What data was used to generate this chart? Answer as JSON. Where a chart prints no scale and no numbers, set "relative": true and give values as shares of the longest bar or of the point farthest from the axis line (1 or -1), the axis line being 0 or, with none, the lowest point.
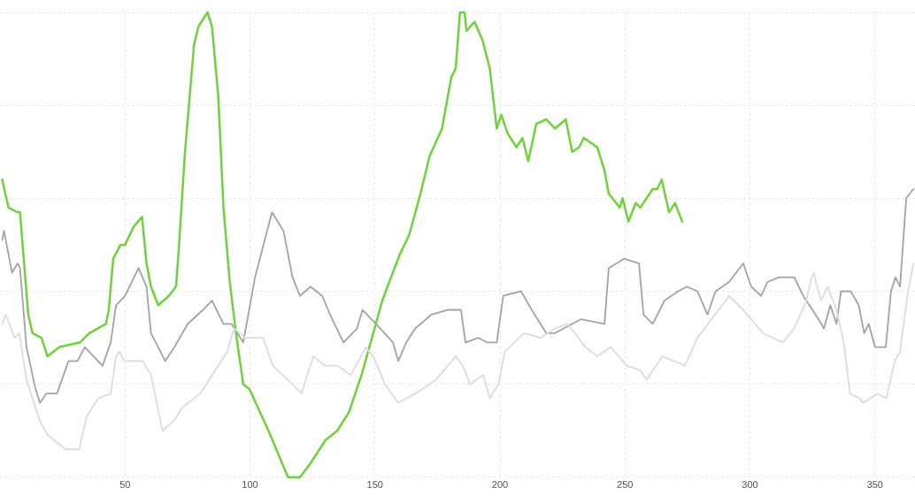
{
  "chart_data": {
    "type": "line",
    "relative": true,
    "xlim": [
      0,
      366
    ],
    "xticks": [
      50,
      100,
      150,
      200,
      250,
      300,
      350
    ],
    "grid": true,
    "legend": false,
    "marker": "none",
    "line_style": "solid",
    "series": [
      {
        "color": "#dcdcdc",
        "x": [
          0.9,
          2.3,
          5.9,
          7.7,
          10.6,
          16,
          19.2,
          26.3,
          31.7,
          34.6,
          39.3,
          44.3,
          46.4,
          47.8,
          49.6,
          51.4,
          57.1,
          60.4,
          65,
          69.3,
          72.9,
          80.1,
          87.3,
          90.9,
          93.7,
          98,
          105.2,
          109.1,
          117,
          120.6,
          125.3,
          130.2,
          134.9,
          140.3,
          146.4,
          149.3,
          154,
          159.3,
          166.1,
          174.4,
          182.3,
          185.1,
          188,
          193.4,
          195.9,
          199.4,
          201.9,
          209.5,
          216.3,
          222,
          227,
          234.2,
          238.9,
          244.3,
          250.7,
          256.1,
          258.6,
          265,
          274,
          279,
          291.6,
          297.3,
          305.2,
          313.1,
          317.7,
          322.6,
          324.6,
          325.6,
          326.3,
          328.5,
          331,
          334.6,
          337.5,
          340,
          343.9,
          345.2,
          351,
          354.6,
          357.9,
          360,
          363.2,
          365.4
        ],
        "values": [
          0.33,
          0.35,
          0.3,
          0.31,
          0.21,
          0.12,
          0.09,
          0.06,
          0.06,
          0.13,
          0.17,
          0.18,
          0.26,
          0.27,
          0.25,
          0.25,
          0.25,
          0.22,
          0.1,
          0.12,
          0.15,
          0.18,
          0.24,
          0.27,
          0.32,
          0.3,
          0.3,
          0.24,
          0.2,
          0.18,
          0.26,
          0.24,
          0.24,
          0.22,
          0.28,
          0.26,
          0.2,
          0.16,
          0.18,
          0.21,
          0.26,
          0.24,
          0.2,
          0.22,
          0.17,
          0.2,
          0.27,
          0.31,
          0.3,
          0.32,
          0.33,
          0.28,
          0.26,
          0.28,
          0.24,
          0.23,
          0.21,
          0.26,
          0.24,
          0.3,
          0.39,
          0.36,
          0.31,
          0.29,
          0.32,
          0.38,
          0.43,
          0.44,
          0.42,
          0.38,
          0.41,
          0.36,
          0.29,
          0.18,
          0.17,
          0.16,
          0.18,
          0.17,
          0.25,
          0.27,
          0.4,
          0.46
        ]
      },
      {
        "color": "#a3a3a3",
        "x": [
          0.9,
          1.6,
          4.8,
          7,
          8,
          10.6,
          14.2,
          16,
          18.5,
          22.8,
          27.4,
          31,
          33.9,
          41,
          44.3,
          46.4,
          50,
          55.4,
          58.6,
          60.4,
          66.1,
          69.8,
          75.1,
          81.2,
          84.8,
          89.4,
          92.6,
          97.3,
          102,
          108.8,
          113.4,
          117,
          120,
          124.2,
          128.9,
          132,
          137.4,
          142.8,
          145,
          150.4,
          157.2,
          159.3,
          162.5,
          166.1,
          172.6,
          179,
          184.4,
          186.2,
          191.2,
          194.8,
          198.7,
          201.3,
          208.4,
          212.7,
          218.5,
          222,
          228.9,
          232.5,
          241.8,
          243.5,
          249.6,
          255.6,
          257.4,
          261.1,
          265.8,
          271.2,
          274.7,
          279,
          283,
          286.2,
          291.6,
          297.3,
          300.5,
          304.5,
          307,
          311.6,
          317.7,
          321.3,
          327.4,
          329.6,
          332.1,
          334.6,
          336.4,
          340.3,
          343.5,
          345.7,
          347.5,
          350,
          354.3,
          356.4,
          358.2,
          360,
          362.5,
          365.4
        ],
        "values": [
          0.51,
          0.53,
          0.44,
          0.46,
          0.45,
          0.28,
          0.19,
          0.16,
          0.18,
          0.18,
          0.25,
          0.25,
          0.28,
          0.24,
          0.29,
          0.37,
          0.39,
          0.45,
          0.41,
          0.31,
          0.25,
          0.28,
          0.33,
          0.36,
          0.38,
          0.33,
          0.33,
          0.29,
          0.43,
          0.57,
          0.53,
          0.43,
          0.39,
          0.41,
          0.39,
          0.35,
          0.29,
          0.32,
          0.36,
          0.33,
          0.29,
          0.25,
          0.29,
          0.32,
          0.35,
          0.36,
          0.36,
          0.29,
          0.3,
          0.29,
          0.29,
          0.39,
          0.4,
          0.36,
          0.31,
          0.31,
          0.33,
          0.34,
          0.33,
          0.45,
          0.47,
          0.46,
          0.35,
          0.33,
          0.38,
          0.4,
          0.41,
          0.4,
          0.35,
          0.4,
          0.42,
          0.46,
          0.41,
          0.39,
          0.42,
          0.43,
          0.43,
          0.39,
          0.34,
          0.32,
          0.37,
          0.33,
          0.4,
          0.4,
          0.37,
          0.31,
          0.33,
          0.28,
          0.28,
          0.4,
          0.43,
          0.41,
          0.6,
          0.62
        ]
      },
      {
        "color": "#6ed33a",
        "x": [
          0.9,
          3.4,
          7,
          8,
          11.3,
          13,
          16.6,
          19,
          23.8,
          32,
          35.7,
          42.4,
          43.5,
          45.3,
          48.2,
          50,
          53.6,
          56.8,
          58.6,
          60.4,
          63.3,
          67.5,
          70.4,
          71.5,
          74,
          77.6,
          79.4,
          83,
          84.8,
          87.3,
          89.4,
          91.9,
          94.4,
          97.3,
          99.8,
          107.4,
          115.2,
          120,
          124.2,
          130.2,
          134.9,
          139.6,
          144.6,
          149.3,
          152.9,
          156.4,
          160,
          163.6,
          168.2,
          171.8,
          176.8,
          180.5,
          182.3,
          184,
          185.8,
          186.6,
          189.8,
          193,
          195.9,
          198.7,
          200.5,
          203,
          206.6,
          209,
          211.3,
          214.5,
          218.5,
          222,
          226.3,
          228.9,
          231.7,
          233.5,
          238.9,
          241.8,
          243.5,
          247.9,
          249,
          251.4,
          254.3,
          256.1,
          261.1,
          262.9,
          264.7,
          267.6,
          270,
          272.9
        ],
        "values": [
          0.64,
          0.58,
          0.57,
          0.57,
          0.35,
          0.31,
          0.3,
          0.26,
          0.28,
          0.29,
          0.31,
          0.33,
          0.36,
          0.47,
          0.5,
          0.5,
          0.54,
          0.56,
          0.46,
          0.41,
          0.37,
          0.39,
          0.41,
          0.49,
          0.7,
          0.93,
          0.97,
          1,
          0.97,
          0.82,
          0.58,
          0.42,
          0.31,
          0.2,
          0.19,
          0.1,
          0,
          0,
          0.03,
          0.08,
          0.1,
          0.14,
          0.22,
          0.31,
          0.38,
          0.43,
          0.48,
          0.52,
          0.61,
          0.69,
          0.75,
          0.86,
          0.88,
          1,
          1,
          0.96,
          0.98,
          0.94,
          0.88,
          0.75,
          0.78,
          0.74,
          0.71,
          0.73,
          0.68,
          0.76,
          0.77,
          0.75,
          0.77,
          0.7,
          0.71,
          0.73,
          0.71,
          0.66,
          0.61,
          0.58,
          0.6,
          0.55,
          0.59,
          0.58,
          0.62,
          0.62,
          0.64,
          0.57,
          0.59,
          0.55
        ]
      }
    ]
  }
}
